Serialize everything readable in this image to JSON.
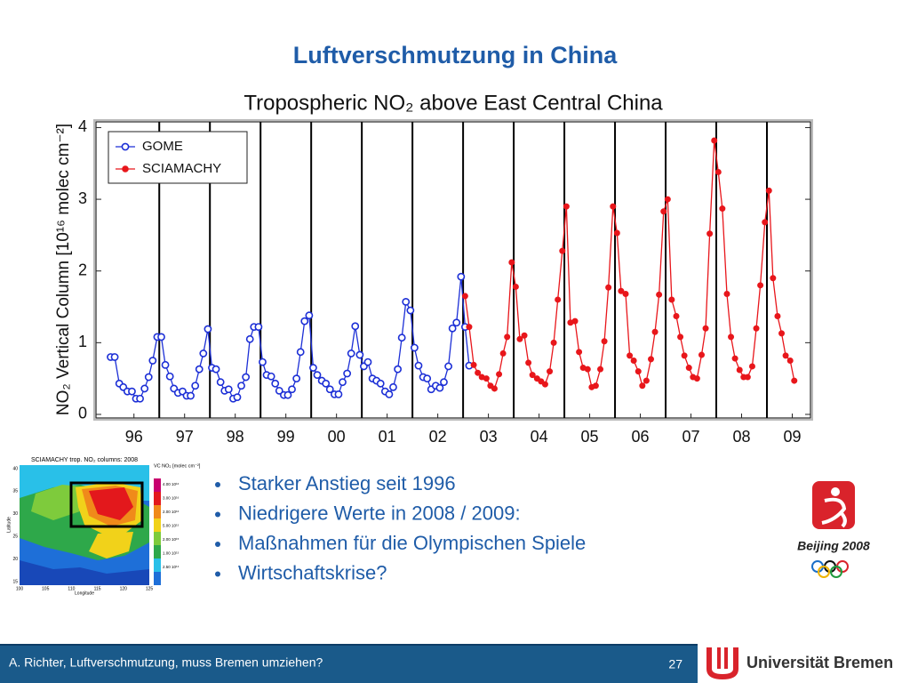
{
  "slide": {
    "title": "Luftverschmutzung in China",
    "bullets": [
      "Starker Anstieg seit 1996",
      "Niedrigere Werte in 2008 / 2009:",
      "Maßnahmen für die Olympischen Spiele",
      "Wirtschaftskrise?"
    ],
    "footer": "A. Richter, Luftverschmutzung, muss Bremen umziehen?",
    "page_number": "27",
    "institution": "Universität Bremen",
    "logo_text": "Beijing 2008"
  },
  "inset_map": {
    "title": "SCIAMACHY trop. NO₂ columns: 2008",
    "colorbar_title": "VC NO₂ [molec cm⁻²]",
    "colorbar_labels": [
      "4.00 10¹⁶",
      "3.00 10¹⁶",
      "2.00 10¹⁶",
      "5.00 10¹⁵",
      "2.00 10¹⁵",
      "1.00 10¹⁵",
      "2.50 10¹⁴"
    ],
    "xlabel": "Longitude",
    "ylabel": "Latitude",
    "xticks": [
      "100",
      "105",
      "110",
      "115",
      "120",
      "125"
    ],
    "yticks": [
      "40",
      "35",
      "30",
      "25",
      "20",
      "15"
    ]
  },
  "chart_data": {
    "type": "line",
    "title": "Tropospheric NO₂ above East Central China",
    "ylabel": "NO₂ Vertical Column [10¹⁶ molec cm⁻²]",
    "xlim": [
      1995.75,
      2009.86
    ],
    "ylim": [
      -0.05,
      4.08
    ],
    "yticks": [
      0,
      1,
      2,
      3,
      4
    ],
    "xticks": [
      {
        "value": 1996.5,
        "label": "96"
      },
      {
        "value": 1997.5,
        "label": "97"
      },
      {
        "value": 1998.5,
        "label": "98"
      },
      {
        "value": 1999.5,
        "label": "99"
      },
      {
        "value": 2000.5,
        "label": "00"
      },
      {
        "value": 2001.5,
        "label": "01"
      },
      {
        "value": 2002.5,
        "label": "02"
      },
      {
        "value": 2003.5,
        "label": "03"
      },
      {
        "value": 2004.5,
        "label": "04"
      },
      {
        "value": 2005.5,
        "label": "05"
      },
      {
        "value": 2006.5,
        "label": "06"
      },
      {
        "value": 2007.5,
        "label": "07"
      },
      {
        "value": 2008.5,
        "label": "08"
      },
      {
        "value": 2009.5,
        "label": "09"
      }
    ],
    "xgrid": [
      1997,
      1998,
      1999,
      2000,
      2001,
      2002,
      2003,
      2004,
      2005,
      2006,
      2007,
      2008,
      2009
    ],
    "legend": "upper left",
    "series": [
      {
        "name": "GOME",
        "color": "#1c2fd6",
        "marker": "open-circle",
        "x": [
          1996.04,
          1996.12,
          1996.21,
          1996.29,
          1996.37,
          1996.46,
          1996.54,
          1996.62,
          1996.71,
          1996.79,
          1996.87,
          1996.96,
          1997.04,
          1997.12,
          1997.21,
          1997.29,
          1997.37,
          1997.46,
          1997.54,
          1997.62,
          1997.71,
          1997.79,
          1997.87,
          1997.96,
          1998.04,
          1998.12,
          1998.21,
          1998.29,
          1998.37,
          1998.46,
          1998.54,
          1998.62,
          1998.71,
          1998.79,
          1998.87,
          1998.96,
          1999.04,
          1999.12,
          1999.21,
          1999.29,
          1999.37,
          1999.46,
          1999.54,
          1999.62,
          1999.71,
          1999.79,
          1999.87,
          1999.96,
          2000.04,
          2000.12,
          2000.21,
          2000.29,
          2000.37,
          2000.46,
          2000.54,
          2000.62,
          2000.71,
          2000.79,
          2000.87,
          2000.96,
          2001.04,
          2001.12,
          2001.21,
          2001.29,
          2001.37,
          2001.46,
          2001.54,
          2001.62,
          2001.71,
          2001.79,
          2001.87,
          2001.96,
          2002.04,
          2002.12,
          2002.21,
          2002.29,
          2002.37,
          2002.46,
          2002.54,
          2002.62,
          2002.71,
          2002.79,
          2002.87,
          2002.96,
          2003.04,
          2003.12
        ],
        "values": [
          0.8,
          0.8,
          0.43,
          0.38,
          0.32,
          0.32,
          0.22,
          0.22,
          0.36,
          0.52,
          0.75,
          1.08,
          1.08,
          0.69,
          0.53,
          0.36,
          0.3,
          0.32,
          0.26,
          0.26,
          0.4,
          0.63,
          0.85,
          1.19,
          0.65,
          0.63,
          0.45,
          0.33,
          0.35,
          0.22,
          0.24,
          0.4,
          0.52,
          1.05,
          1.22,
          1.22,
          0.73,
          0.55,
          0.53,
          0.43,
          0.33,
          0.27,
          0.27,
          0.35,
          0.5,
          0.87,
          1.3,
          1.38,
          0.65,
          0.55,
          0.47,
          0.43,
          0.35,
          0.28,
          0.28,
          0.45,
          0.57,
          0.85,
          1.23,
          0.83,
          0.67,
          0.73,
          0.5,
          0.47,
          0.43,
          0.32,
          0.28,
          0.38,
          0.63,
          1.07,
          1.57,
          1.45,
          0.93,
          0.68,
          0.52,
          0.5,
          0.35,
          0.4,
          0.37,
          0.45,
          0.67,
          1.2,
          1.28,
          1.92,
          1.22,
          0.68
        ]
      },
      {
        "name": "SCIAMACHY",
        "color": "#e8161b",
        "marker": "filled-circle",
        "x": [
          2003.04,
          2003.12,
          2003.21,
          2003.29,
          2003.37,
          2003.46,
          2003.54,
          2003.62,
          2003.71,
          2003.79,
          2003.87,
          2003.96,
          2004.04,
          2004.12,
          2004.21,
          2004.29,
          2004.37,
          2004.46,
          2004.54,
          2004.62,
          2004.71,
          2004.79,
          2004.87,
          2004.96,
          2005.04,
          2005.12,
          2005.21,
          2005.29,
          2005.37,
          2005.46,
          2005.54,
          2005.62,
          2005.71,
          2005.79,
          2005.87,
          2005.96,
          2006.04,
          2006.12,
          2006.21,
          2006.29,
          2006.37,
          2006.46,
          2006.54,
          2006.62,
          2006.71,
          2006.79,
          2006.87,
          2006.96,
          2007.04,
          2007.12,
          2007.21,
          2007.29,
          2007.37,
          2007.46,
          2007.54,
          2007.62,
          2007.71,
          2007.79,
          2007.87,
          2007.96,
          2008.04,
          2008.12,
          2008.21,
          2008.29,
          2008.37,
          2008.46,
          2008.54,
          2008.62,
          2008.71,
          2008.79,
          2008.87,
          2008.96,
          2009.04,
          2009.12,
          2009.21,
          2009.29,
          2009.37,
          2009.46,
          2009.54
        ],
        "values": [
          1.65,
          1.22,
          0.69,
          0.58,
          0.52,
          0.5,
          0.4,
          0.36,
          0.56,
          0.85,
          1.08,
          2.12,
          1.78,
          1.05,
          1.1,
          0.72,
          0.55,
          0.5,
          0.46,
          0.42,
          0.6,
          1.0,
          1.6,
          2.28,
          2.9,
          1.28,
          1.3,
          0.87,
          0.65,
          0.63,
          0.38,
          0.4,
          0.63,
          1.02,
          1.77,
          2.9,
          2.53,
          1.72,
          1.68,
          0.82,
          0.75,
          0.6,
          0.4,
          0.47,
          0.77,
          1.15,
          1.67,
          2.83,
          3.0,
          1.6,
          1.37,
          1.08,
          0.82,
          0.65,
          0.52,
          0.5,
          0.83,
          1.2,
          2.52,
          3.82,
          3.38,
          2.87,
          1.68,
          1.08,
          0.78,
          0.62,
          0.52,
          0.52,
          0.67,
          1.2,
          1.8,
          2.68,
          3.12,
          1.9,
          1.37,
          1.13,
          0.82,
          0.75,
          0.47
        ]
      }
    ]
  }
}
